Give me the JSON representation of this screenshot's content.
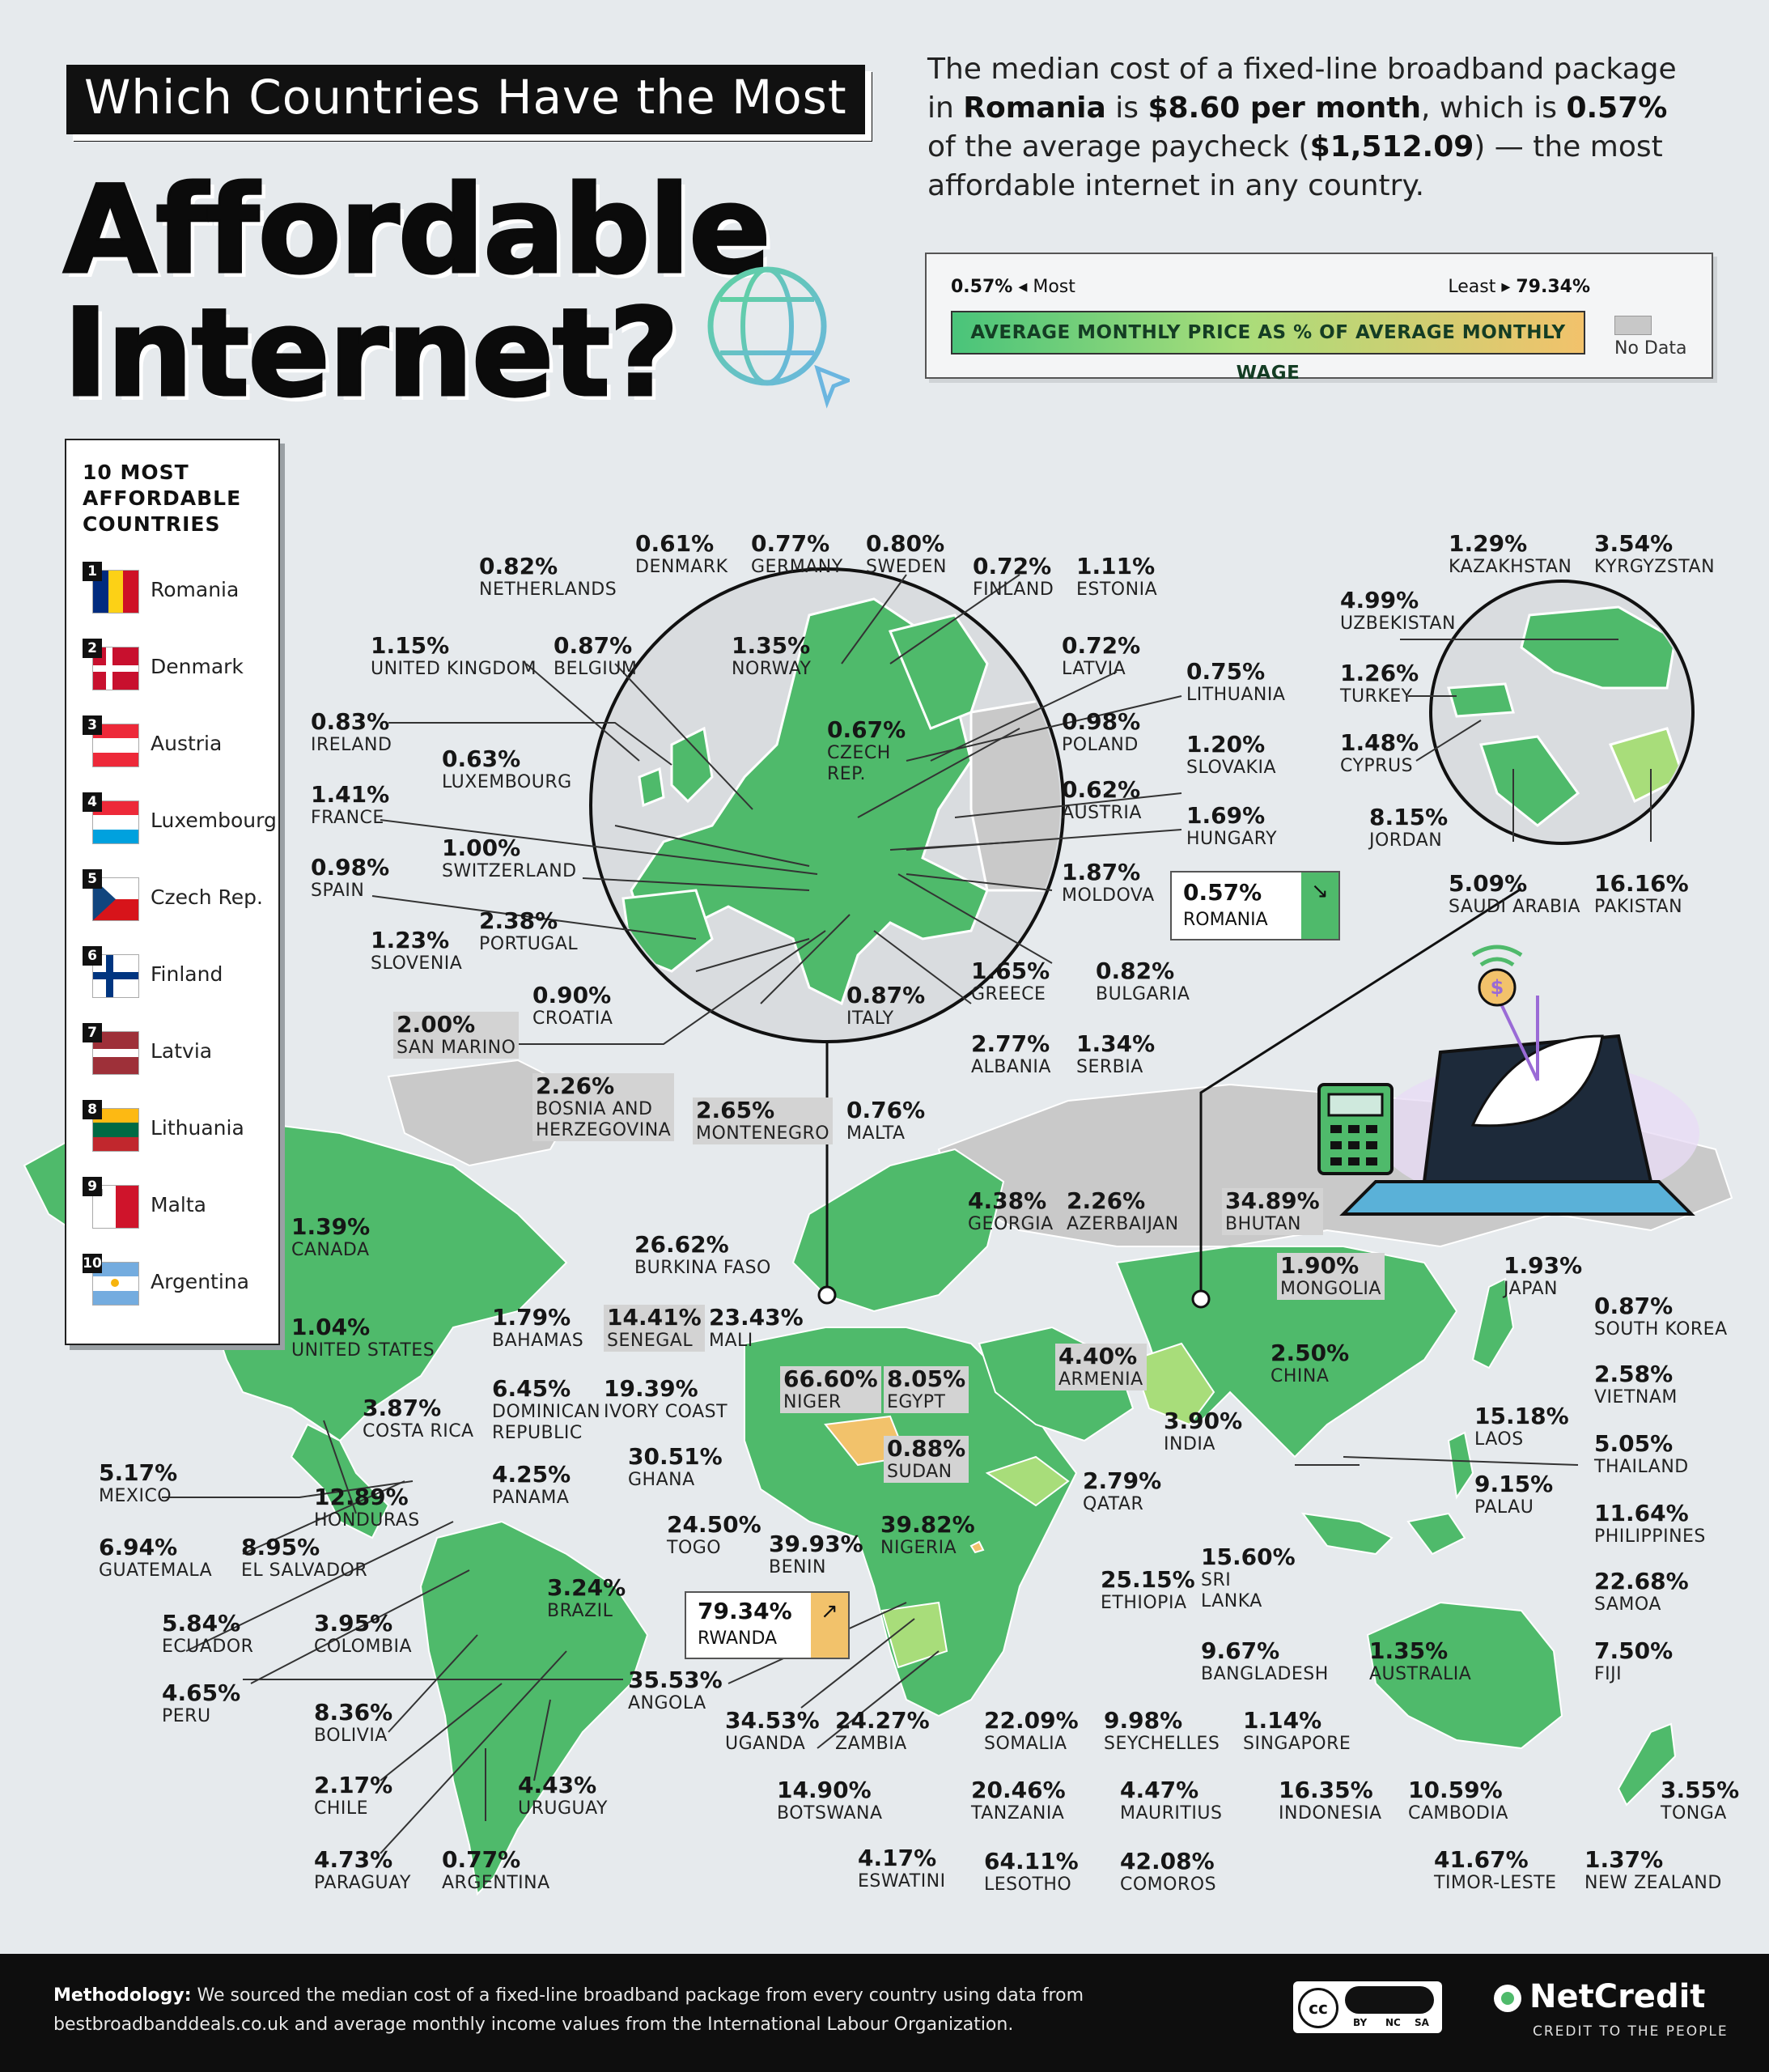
{
  "header": {
    "title_line1": "Which Countries Have the Most",
    "title_line2": "Affordable",
    "title_line3": "Internet?"
  },
  "intro": {
    "p1": "The median cost of a fixed-line broadband package in ",
    "country": "Romania",
    "p2": " is ",
    "price": "$8.60 per month",
    "p3": ", which is ",
    "pct": "0.57%",
    "p4": " of the average paycheck (",
    "wage": "$1,512.09",
    "p5": ") — the most affordable internet in any country."
  },
  "legend": {
    "most_value": "0.57%",
    "most_label": "Most",
    "least_label": "Least",
    "least_value": "79.34%",
    "bar_label": "AVERAGE MONTHLY PRICE AS % OF AVERAGE MONTHLY WAGE",
    "nodata_label": "No Data",
    "colors": {
      "low": "#49c47a",
      "mid": "#a8dd7a",
      "high": "#f2c26b",
      "nodata": "#c8c8c8"
    }
  },
  "top10": {
    "title_l1": "10 MOST",
    "title_l2": "AFFORDABLE",
    "title_l3": "COUNTRIES",
    "items": [
      {
        "rank": "1",
        "name": "Romania",
        "flag": "romania-flag"
      },
      {
        "rank": "2",
        "name": "Denmark",
        "flag": "denmark-flag"
      },
      {
        "rank": "3",
        "name": "Austria",
        "flag": "austria-flag"
      },
      {
        "rank": "4",
        "name": "Luxembourg",
        "flag": "luxembourg-flag"
      },
      {
        "rank": "5",
        "name": "Czech Rep.",
        "flag": "czech-flag"
      },
      {
        "rank": "6",
        "name": "Finland",
        "flag": "finland-flag"
      },
      {
        "rank": "7",
        "name": "Latvia",
        "flag": "latvia-flag"
      },
      {
        "rank": "8",
        "name": "Lithuania",
        "flag": "lithuania-flag"
      },
      {
        "rank": "9",
        "name": "Malta",
        "flag": "malta-flag"
      },
      {
        "rank": "10",
        "name": "Argentina",
        "flag": "argentina-flag"
      }
    ]
  },
  "labels": [
    {
      "id": "denmark",
      "pct": "0.61%",
      "name": "DENMARK"
    },
    {
      "id": "germany",
      "pct": "0.77%",
      "name": "GERMANY"
    },
    {
      "id": "sweden",
      "pct": "0.80%",
      "name": "SWEDEN"
    },
    {
      "id": "netherlands",
      "pct": "0.82%",
      "name": "NETHERLANDS"
    },
    {
      "id": "finland",
      "pct": "0.72%",
      "name": "FINLAND"
    },
    {
      "id": "estonia",
      "pct": "1.11%",
      "name": "ESTONIA"
    },
    {
      "id": "united-kingdom",
      "pct": "1.15%",
      "name": "UNITED KINGDOM"
    },
    {
      "id": "belgium",
      "pct": "0.87%",
      "name": "BELGIUM"
    },
    {
      "id": "norway",
      "pct": "1.35%",
      "name": "NORWAY"
    },
    {
      "id": "latvia",
      "pct": "0.72%",
      "name": "LATVIA"
    },
    {
      "id": "lithuania",
      "pct": "0.75%",
      "name": "LITHUANIA"
    },
    {
      "id": "ireland",
      "pct": "0.83%",
      "name": "IRELAND"
    },
    {
      "id": "czech",
      "pct": "0.67%",
      "name": "CZECH",
      "name2": "REP."
    },
    {
      "id": "poland",
      "pct": "0.98%",
      "name": "POLAND"
    },
    {
      "id": "luxembourg",
      "pct": "0.63%",
      "name": "LUXEMBOURG"
    },
    {
      "id": "slovakia",
      "pct": "1.20%",
      "name": "SLOVAKIA"
    },
    {
      "id": "france",
      "pct": "1.41%",
      "name": "FRANCE"
    },
    {
      "id": "austria",
      "pct": "0.62%",
      "name": "AUSTRIA"
    },
    {
      "id": "switzerland",
      "pct": "1.00%",
      "name": "SWITZERLAND"
    },
    {
      "id": "hungary",
      "pct": "1.69%",
      "name": "HUNGARY"
    },
    {
      "id": "spain",
      "pct": "0.98%",
      "name": "SPAIN"
    },
    {
      "id": "moldova",
      "pct": "1.87%",
      "name": "MOLDOVA"
    },
    {
      "id": "portugal",
      "pct": "2.38%",
      "name": "PORTUGAL"
    },
    {
      "id": "slovenia",
      "pct": "1.23%",
      "name": "SLOVENIA"
    },
    {
      "id": "bulgaria",
      "pct": "0.82%",
      "name": "BULGARIA"
    },
    {
      "id": "greece",
      "pct": "1.65%",
      "name": "GREECE"
    },
    {
      "id": "croatia",
      "pct": "0.90%",
      "name": "CROATIA"
    },
    {
      "id": "italy",
      "pct": "0.87%",
      "name": "ITALY"
    },
    {
      "id": "san-marino",
      "pct": "2.00%",
      "name": "SAN MARINO"
    },
    {
      "id": "albania",
      "pct": "2.77%",
      "name": "ALBANIA"
    },
    {
      "id": "serbia",
      "pct": "1.34%",
      "name": "SERBIA"
    },
    {
      "id": "bosnia",
      "pct": "2.26%",
      "name": "BOSNIA AND",
      "name2": "HERZEGOVINA"
    },
    {
      "id": "montenegro",
      "pct": "2.65%",
      "name": "MONTENEGRO"
    },
    {
      "id": "malta",
      "pct": "0.76%",
      "name": "MALTA"
    },
    {
      "id": "kazakhstan",
      "pct": "1.29%",
      "name": "KAZAKHSTAN"
    },
    {
      "id": "kyrgyzstan",
      "pct": "3.54%",
      "name": "KYRGYZSTAN"
    },
    {
      "id": "uzbekistan",
      "pct": "4.99%",
      "name": "UZBEKISTAN"
    },
    {
      "id": "turkey",
      "pct": "1.26%",
      "name": "TURKEY"
    },
    {
      "id": "cyprus",
      "pct": "1.48%",
      "name": "CYPRUS"
    },
    {
      "id": "jordan",
      "pct": "8.15%",
      "name": "JORDAN"
    },
    {
      "id": "saudi-arabia",
      "pct": "5.09%",
      "name": "SAUDI ARABIA"
    },
    {
      "id": "pakistan",
      "pct": "16.16%",
      "name": "PAKISTAN"
    },
    {
      "id": "canada",
      "pct": "1.39%",
      "name": "CANADA"
    },
    {
      "id": "united-states",
      "pct": "1.04%",
      "name": "UNITED STATES"
    },
    {
      "id": "bahamas",
      "pct": "1.79%",
      "name": "BAHAMAS"
    },
    {
      "id": "costa-rica",
      "pct": "3.87%",
      "name": "COSTA RICA"
    },
    {
      "id": "dominican",
      "pct": "6.45%",
      "name": "DOMINICAN",
      "name2": "REPUBLIC"
    },
    {
      "id": "panama",
      "pct": "4.25%",
      "name": "PANAMA"
    },
    {
      "id": "mexico",
      "pct": "5.17%",
      "name": "MEXICO"
    },
    {
      "id": "honduras",
      "pct": "12.89%",
      "name": "HONDURAS"
    },
    {
      "id": "guatemala",
      "pct": "6.94%",
      "name": "GUATEMALA"
    },
    {
      "id": "el-salvador",
      "pct": "8.95%",
      "name": "EL SALVADOR"
    },
    {
      "id": "ecuador",
      "pct": "5.84%",
      "name": "ECUADOR"
    },
    {
      "id": "colombia",
      "pct": "3.95%",
      "name": "COLOMBIA"
    },
    {
      "id": "brazil",
      "pct": "3.24%",
      "name": "BRAZIL"
    },
    {
      "id": "peru",
      "pct": "4.65%",
      "name": "PERU"
    },
    {
      "id": "bolivia",
      "pct": "8.36%",
      "name": "BOLIVIA"
    },
    {
      "id": "chile",
      "pct": "2.17%",
      "name": "CHILE"
    },
    {
      "id": "uruguay",
      "pct": "4.43%",
      "name": "URUGUAY"
    },
    {
      "id": "paraguay",
      "pct": "4.73%",
      "name": "PARAGUAY"
    },
    {
      "id": "argentina",
      "pct": "0.77%",
      "name": "ARGENTINA"
    },
    {
      "id": "burkina-faso",
      "pct": "26.62%",
      "name": "BURKINA FASO"
    },
    {
      "id": "senegal",
      "pct": "14.41%",
      "name": "SENEGAL"
    },
    {
      "id": "mali",
      "pct": "23.43%",
      "name": "MALI"
    },
    {
      "id": "niger",
      "pct": "66.60%",
      "name": "NIGER"
    },
    {
      "id": "egypt",
      "pct": "8.05%",
      "name": "EGYPT"
    },
    {
      "id": "ivory-coast",
      "pct": "19.39%",
      "name": "IVORY COAST"
    },
    {
      "id": "sudan",
      "pct": "0.88%",
      "name": "SUDAN"
    },
    {
      "id": "ghana",
      "pct": "30.51%",
      "name": "GHANA"
    },
    {
      "id": "togo",
      "pct": "24.50%",
      "name": "TOGO"
    },
    {
      "id": "benin",
      "pct": "39.93%",
      "name": "BENIN"
    },
    {
      "id": "nigeria",
      "pct": "39.82%",
      "name": "NIGERIA"
    },
    {
      "id": "angola",
      "pct": "35.53%",
      "name": "ANGOLA"
    },
    {
      "id": "uganda",
      "pct": "34.53%",
      "name": "UGANDA"
    },
    {
      "id": "zambia",
      "pct": "24.27%",
      "name": "ZAMBIA"
    },
    {
      "id": "somalia",
      "pct": "22.09%",
      "name": "SOMALIA"
    },
    {
      "id": "seychelles",
      "pct": "9.98%",
      "name": "SEYCHELLES"
    },
    {
      "id": "botswana",
      "pct": "14.90%",
      "name": "BOTSWANA"
    },
    {
      "id": "tanzania",
      "pct": "20.46%",
      "name": "TANZANIA"
    },
    {
      "id": "mauritius",
      "pct": "4.47%",
      "name": "MAURITIUS"
    },
    {
      "id": "eswatini",
      "pct": "4.17%",
      "name": "ESWATINI"
    },
    {
      "id": "lesotho",
      "pct": "64.11%",
      "name": "LESOTHO"
    },
    {
      "id": "comoros",
      "pct": "42.08%",
      "name": "COMOROS"
    },
    {
      "id": "ethiopia",
      "pct": "25.15%",
      "name": "ETHIOPIA"
    },
    {
      "id": "georgia",
      "pct": "4.38%",
      "name": "GEORGIA"
    },
    {
      "id": "azerbaijan",
      "pct": "2.26%",
      "name": "AZERBAIJAN"
    },
    {
      "id": "bhutan",
      "pct": "34.89%",
      "name": "BHUTAN"
    },
    {
      "id": "mongolia",
      "pct": "1.90%",
      "name": "MONGOLIA"
    },
    {
      "id": "japan",
      "pct": "1.93%",
      "name": "JAPAN"
    },
    {
      "id": "south-korea",
      "pct": "0.87%",
      "name": "SOUTH KOREA"
    },
    {
      "id": "armenia",
      "pct": "4.40%",
      "name": "ARMENIA"
    },
    {
      "id": "china",
      "pct": "2.50%",
      "name": "CHINA"
    },
    {
      "id": "vietnam",
      "pct": "2.58%",
      "name": "VIETNAM"
    },
    {
      "id": "india",
      "pct": "3.90%",
      "name": "INDIA"
    },
    {
      "id": "laos",
      "pct": "15.18%",
      "name": "LAOS"
    },
    {
      "id": "thailand",
      "pct": "5.05%",
      "name": "THAILAND"
    },
    {
      "id": "qatar",
      "pct": "2.79%",
      "name": "QATAR"
    },
    {
      "id": "palau",
      "pct": "9.15%",
      "name": "PALAU"
    },
    {
      "id": "philippines",
      "pct": "11.64%",
      "name": "PHILIPPINES"
    },
    {
      "id": "sri-lanka",
      "pct": "15.60%",
      "name": "SRI",
      "name2": "LANKA"
    },
    {
      "id": "samoa",
      "pct": "22.68%",
      "name": "SAMOA"
    },
    {
      "id": "bangladesh",
      "pct": "9.67%",
      "name": "BANGLADESH"
    },
    {
      "id": "australia",
      "pct": "1.35%",
      "name": "AUSTRALIA"
    },
    {
      "id": "fiji",
      "pct": "7.50%",
      "name": "FIJI"
    },
    {
      "id": "singapore",
      "pct": "1.14%",
      "name": "SINGAPORE"
    },
    {
      "id": "indonesia",
      "pct": "16.35%",
      "name": "INDONESIA"
    },
    {
      "id": "cambodia",
      "pct": "10.59%",
      "name": "CAMBODIA"
    },
    {
      "id": "tonga",
      "pct": "3.55%",
      "name": "TONGA"
    },
    {
      "id": "timor-leste",
      "pct": "41.67%",
      "name": "TIMOR-LESTE"
    },
    {
      "id": "new-zealand",
      "pct": "1.37%",
      "name": "NEW ZEALAND"
    }
  ],
  "highlights": {
    "romania": {
      "pct": "0.57%",
      "name": "ROMANIA"
    },
    "rwanda": {
      "pct": "79.34%",
      "name": "RWANDA"
    }
  },
  "footer": {
    "method_label": "Methodology:",
    "method_text": " We sourced the median cost of a fixed-line broadband package from every country using data from bestbroadbanddeals.co.uk and average monthly income values from the International Labour Organization.",
    "cc_by": "BY",
    "cc_nc": "NC",
    "cc_sa": "SA",
    "brand": "NetCredit",
    "tagline": "CREDIT TO THE PEOPLE"
  }
}
